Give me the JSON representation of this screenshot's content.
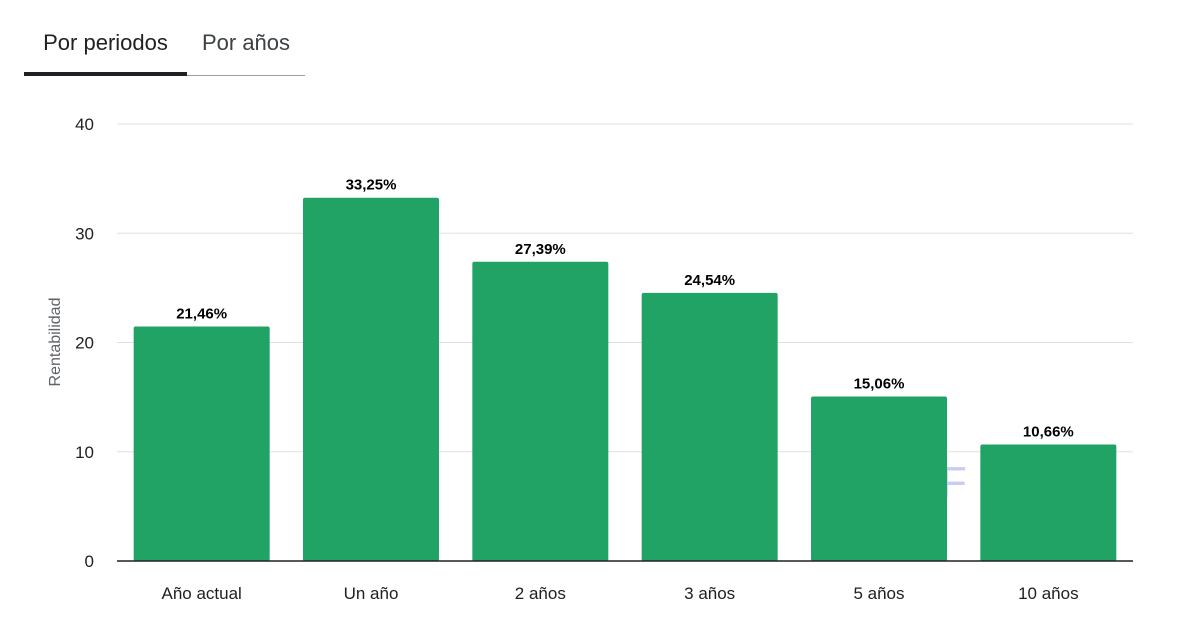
{
  "tabs": [
    {
      "label": "Por periodos",
      "active": true
    },
    {
      "label": "Por años",
      "active": false
    }
  ],
  "chart_data": {
    "type": "bar",
    "categories": [
      "Año actual",
      "Un año",
      "2 años",
      "3 años",
      "5 años",
      "10 años"
    ],
    "values": [
      21.46,
      33.25,
      27.39,
      24.54,
      15.06,
      10.66
    ],
    "data_labels": [
      "21,46%",
      "33,25%",
      "27,39%",
      "24,54%",
      "15,06%",
      "10,66%"
    ],
    "title": "",
    "xlabel": "",
    "ylabel": "Rentabilidad",
    "ylim": [
      0,
      40
    ],
    "yticks": [
      0,
      10,
      20,
      30,
      40
    ],
    "grid": true,
    "bar_color": "#21a366",
    "grid_color": "#e0e0e0",
    "axis_color": "#202124"
  }
}
